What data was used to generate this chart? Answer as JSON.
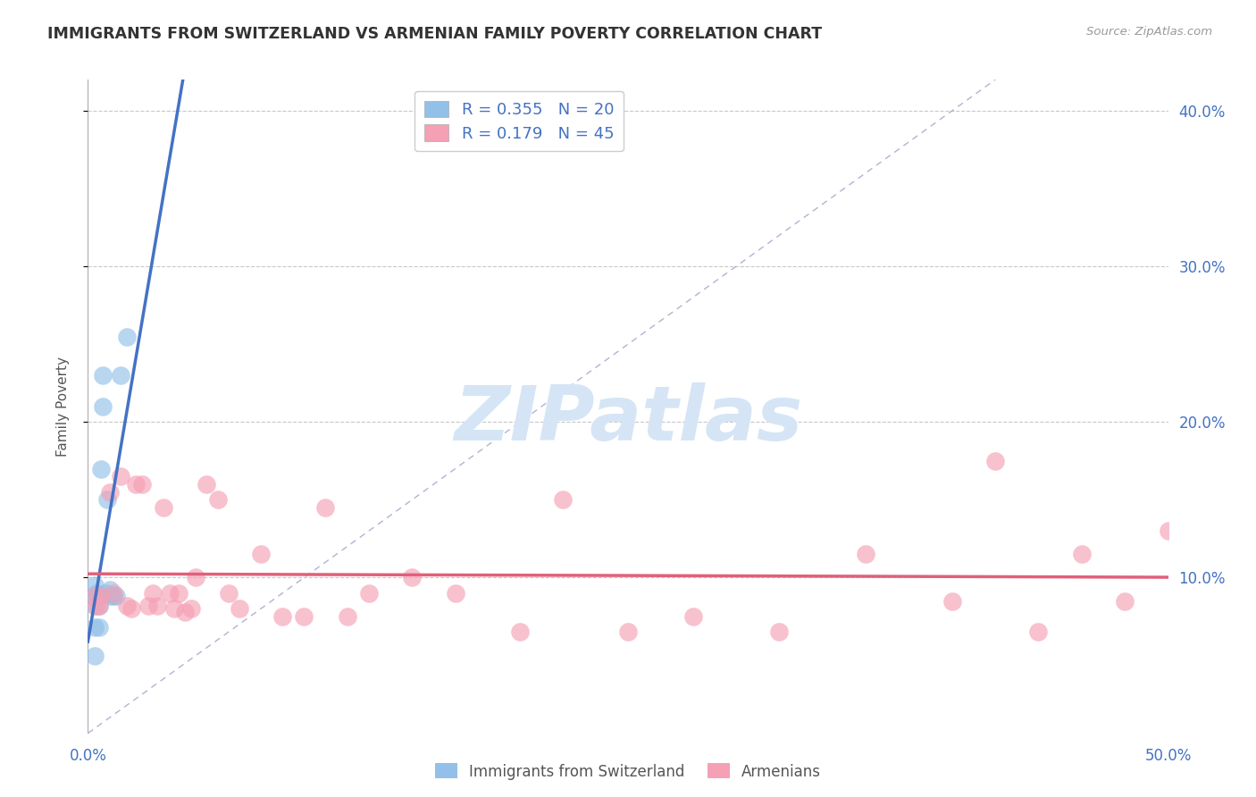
{
  "title": "IMMIGRANTS FROM SWITZERLAND VS ARMENIAN FAMILY POVERTY CORRELATION CHART",
  "source_text": "Source: ZipAtlas.com",
  "ylabel": "Family Poverty",
  "xlim": [
    0.0,
    0.5
  ],
  "ylim": [
    0.0,
    0.42
  ],
  "x_ticks": [
    0.0,
    0.1,
    0.2,
    0.3,
    0.4,
    0.5
  ],
  "x_tick_labels": [
    "0.0%",
    "",
    "",
    "",
    "",
    "50.0%"
  ],
  "y_ticks": [
    0.1,
    0.2,
    0.3,
    0.4
  ],
  "y_tick_labels": [
    "10.0%",
    "20.0%",
    "30.0%",
    "40.0%"
  ],
  "grid_color": "#c8c8c8",
  "background_color": "#ffffff",
  "title_color": "#333333",
  "title_fontsize": 12.5,
  "watermark_text": "ZIPatlas",
  "watermark_color": "#d5e5f5",
  "legend_R1": "R = 0.355",
  "legend_N1": "N = 20",
  "legend_R2": "R = 0.179",
  "legend_N2": "N = 45",
  "legend_label1": "Immigrants from Switzerland",
  "legend_label2": "Armenians",
  "blue_color": "#92c0e8",
  "blue_line": "#4472c4",
  "pink_color": "#f5a0b5",
  "pink_line": "#e0607a",
  "ref_line_color": "#aaaacc",
  "swiss_x": [
    0.003,
    0.003,
    0.003,
    0.004,
    0.005,
    0.005,
    0.005,
    0.006,
    0.007,
    0.007,
    0.008,
    0.009,
    0.01,
    0.01,
    0.012,
    0.013,
    0.015,
    0.018,
    0.003,
    0.003
  ],
  "swiss_y": [
    0.095,
    0.088,
    0.082,
    0.09,
    0.088,
    0.082,
    0.068,
    0.17,
    0.21,
    0.23,
    0.09,
    0.15,
    0.092,
    0.088,
    0.088,
    0.088,
    0.23,
    0.255,
    0.068,
    0.05
  ],
  "armenian_x": [
    0.003,
    0.004,
    0.005,
    0.006,
    0.01,
    0.012,
    0.015,
    0.018,
    0.02,
    0.022,
    0.025,
    0.028,
    0.03,
    0.032,
    0.035,
    0.038,
    0.04,
    0.042,
    0.045,
    0.048,
    0.05,
    0.055,
    0.06,
    0.065,
    0.07,
    0.08,
    0.09,
    0.1,
    0.11,
    0.12,
    0.13,
    0.15,
    0.17,
    0.2,
    0.22,
    0.25,
    0.28,
    0.32,
    0.36,
    0.4,
    0.42,
    0.44,
    0.46,
    0.48,
    0.5
  ],
  "armenian_y": [
    0.088,
    0.082,
    0.082,
    0.088,
    0.155,
    0.09,
    0.165,
    0.082,
    0.08,
    0.16,
    0.16,
    0.082,
    0.09,
    0.082,
    0.145,
    0.09,
    0.08,
    0.09,
    0.078,
    0.08,
    0.1,
    0.16,
    0.15,
    0.09,
    0.08,
    0.115,
    0.075,
    0.075,
    0.145,
    0.075,
    0.09,
    0.1,
    0.09,
    0.065,
    0.15,
    0.065,
    0.075,
    0.065,
    0.115,
    0.085,
    0.175,
    0.065,
    0.115,
    0.085,
    0.13
  ]
}
